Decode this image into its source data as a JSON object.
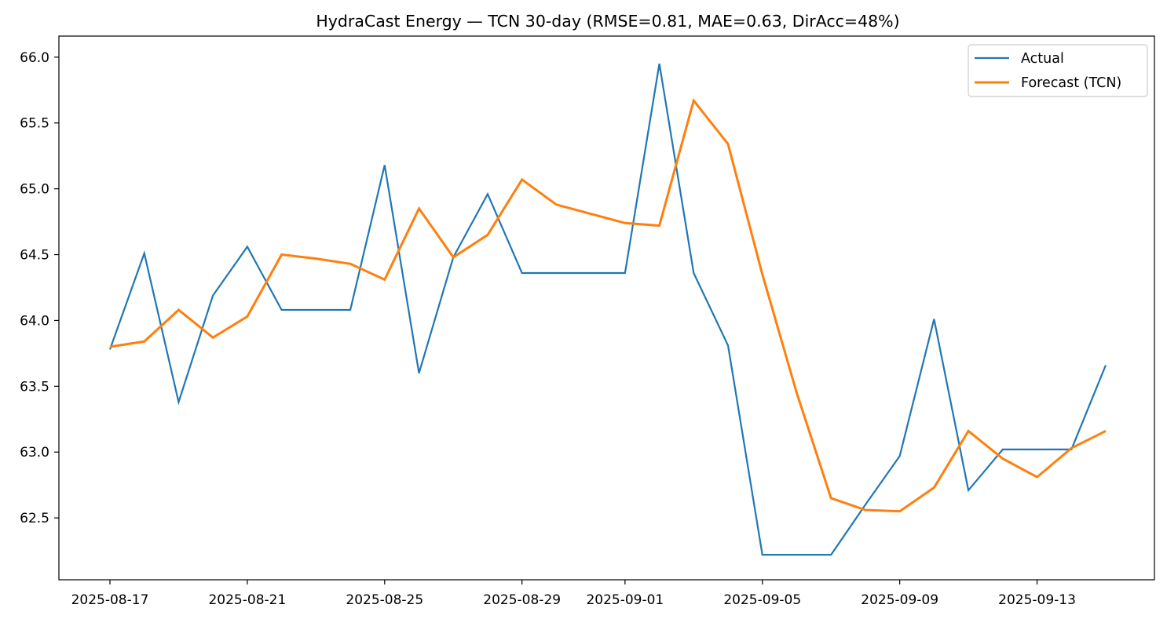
{
  "chart_data": {
    "type": "line",
    "title": "HydraCast Energy — TCN 30-day (RMSE=0.81, MAE=0.63, DirAcc=48%)",
    "xlabel": "",
    "ylabel": "",
    "x": [
      "2025-08-17",
      "2025-08-18",
      "2025-08-19",
      "2025-08-20",
      "2025-08-21",
      "2025-08-22",
      "2025-08-23",
      "2025-08-24",
      "2025-08-25",
      "2025-08-26",
      "2025-08-27",
      "2025-08-28",
      "2025-08-29",
      "2025-08-30",
      "2025-08-31",
      "2025-09-01",
      "2025-09-02",
      "2025-09-03",
      "2025-09-04",
      "2025-09-05",
      "2025-09-06",
      "2025-09-07",
      "2025-09-08",
      "2025-09-09",
      "2025-09-10",
      "2025-09-11",
      "2025-09-12",
      "2025-09-13",
      "2025-09-14",
      "2025-09-15"
    ],
    "x_ticks": [
      "2025-08-17",
      "2025-08-21",
      "2025-08-25",
      "2025-08-29",
      "2025-09-01",
      "2025-09-05",
      "2025-09-09",
      "2025-09-13"
    ],
    "y_ticks": [
      62.5,
      63.0,
      63.5,
      64.0,
      64.5,
      65.0,
      65.5,
      66.0
    ],
    "ylim": [
      62.03,
      66.16
    ],
    "grid": false,
    "legend_position": "top-right",
    "series": [
      {
        "name": "Actual",
        "color": "#1f77b4",
        "values": [
          63.78,
          64.51,
          63.38,
          64.19,
          64.56,
          64.08,
          64.08,
          64.08,
          65.18,
          63.6,
          64.48,
          64.96,
          64.36,
          64.36,
          64.36,
          64.36,
          65.95,
          64.36,
          63.81,
          62.22,
          62.22,
          62.22,
          62.6,
          62.97,
          64.01,
          62.71,
          63.02,
          63.02,
          63.02,
          63.66
        ]
      },
      {
        "name": "Forecast (TCN)",
        "color": "#ff7f0e",
        "values": [
          63.8,
          63.84,
          64.08,
          63.87,
          64.03,
          64.5,
          64.47,
          64.43,
          64.31,
          64.85,
          64.48,
          64.65,
          65.07,
          64.88,
          64.81,
          64.74,
          64.72,
          65.67,
          65.34,
          64.35,
          63.45,
          62.65,
          62.56,
          62.55,
          62.73,
          63.16,
          62.95,
          62.81,
          63.03,
          63.16
        ]
      }
    ]
  }
}
